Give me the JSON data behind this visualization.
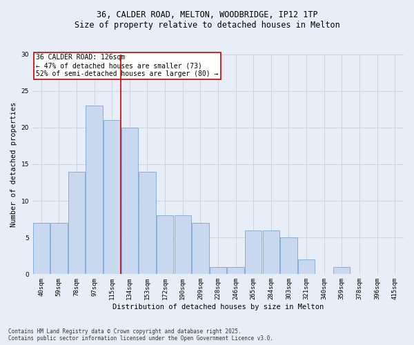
{
  "title_line1": "36, CALDER ROAD, MELTON, WOODBRIDGE, IP12 1TP",
  "title_line2": "Size of property relative to detached houses in Melton",
  "xlabel": "Distribution of detached houses by size in Melton",
  "ylabel": "Number of detached properties",
  "bar_labels": [
    "40sqm",
    "59sqm",
    "78sqm",
    "97sqm",
    "115sqm",
    "134sqm",
    "153sqm",
    "172sqm",
    "190sqm",
    "209sqm",
    "228sqm",
    "246sqm",
    "265sqm",
    "284sqm",
    "303sqm",
    "321sqm",
    "340sqm",
    "359sqm",
    "378sqm",
    "396sqm",
    "415sqm"
  ],
  "bar_values": [
    7,
    7,
    14,
    23,
    21,
    20,
    14,
    8,
    8,
    7,
    1,
    1,
    6,
    6,
    5,
    2,
    0,
    1,
    0,
    0,
    0
  ],
  "bar_color": "#c8d8ee",
  "bar_edgecolor": "#7aa8d0",
  "background_color": "#e8eef8",
  "grid_color": "#c8d0dc",
  "ylim": [
    0,
    30
  ],
  "yticks": [
    0,
    5,
    10,
    15,
    20,
    25,
    30
  ],
  "annotation_title": "36 CALDER ROAD: 126sqm",
  "annotation_line1": "← 47% of detached houses are smaller (73)",
  "annotation_line2": "52% of semi-detached houses are larger (80) →",
  "vline_bin_index": 4,
  "vline_color": "#cc0000",
  "footer_line1": "Contains HM Land Registry data © Crown copyright and database right 2025.",
  "footer_line2": "Contains public sector information licensed under the Open Government Licence v3.0.",
  "title_fontsize": 8.5,
  "ylabel_fontsize": 7.5,
  "xlabel_fontsize": 7.5,
  "tick_fontsize": 6.5,
  "annotation_fontsize": 7,
  "footer_fontsize": 5.5
}
